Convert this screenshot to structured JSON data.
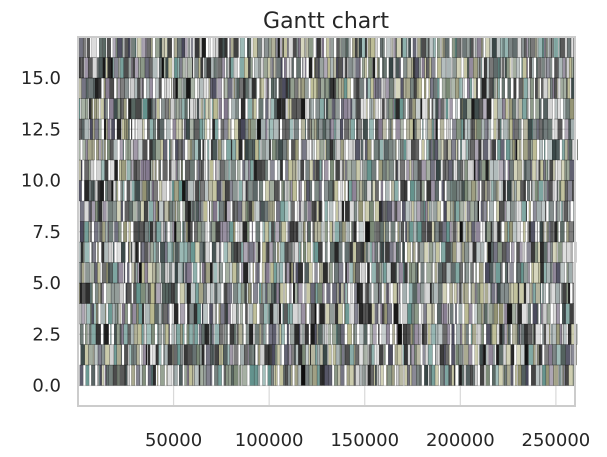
{
  "chart_data": {
    "type": "gantt",
    "title": "Gantt chart",
    "xlabel": "",
    "ylabel": "",
    "xlim": [
      0,
      260000
    ],
    "ylim": [
      -1,
      17
    ],
    "grid": true,
    "legend": "none",
    "x_ticks": [
      {
        "value": 50000,
        "label": "50000"
      },
      {
        "value": 100000,
        "label": "100000"
      },
      {
        "value": 150000,
        "label": "150000"
      },
      {
        "value": 200000,
        "label": "200000"
      },
      {
        "value": 250000,
        "label": "250000"
      }
    ],
    "y_ticks": [
      {
        "value": 0,
        "label": "0.0"
      },
      {
        "value": 2.5,
        "label": "2.5"
      },
      {
        "value": 5,
        "label": "5.0"
      },
      {
        "value": 7.5,
        "label": "7.5"
      },
      {
        "value": 10,
        "label": "10.0"
      },
      {
        "value": 12.5,
        "label": "12.5"
      },
      {
        "value": 15,
        "label": "15.0"
      }
    ],
    "rows": 17,
    "row_range": [
      0,
      16
    ],
    "task_span": [
      0,
      260000
    ],
    "colors": [
      "#000000",
      "#1a1a1a",
      "#2b3a3a",
      "#4a5a55",
      "#6f7f6a",
      "#8c8c6a",
      "#7a6f85",
      "#9aa7a7",
      "#5a8c86",
      "#b5b58a",
      "#c9c9c9",
      "#3b3b4f"
    ]
  }
}
